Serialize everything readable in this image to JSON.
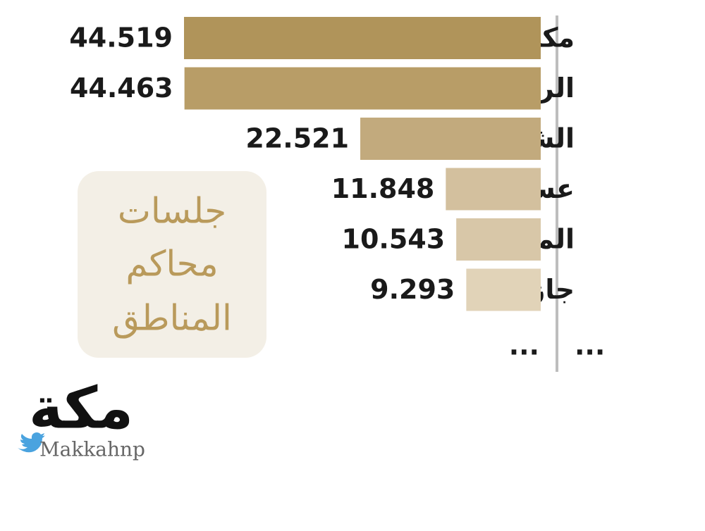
{
  "chart_data": {
    "type": "bar",
    "categories": [
      "مكة",
      "الرياض",
      "الشرقية",
      "عسير",
      "المدينة",
      "جازان"
    ],
    "values": [
      44.519,
      44.463,
      22.521,
      11.848,
      10.543,
      9.293
    ],
    "colors": [
      "#b0945a",
      "#b89d67",
      "#c2aa7d",
      "#d3c09e",
      "#d8c7a8",
      "#e1d3b8"
    ],
    "continuation": {
      "category": "...",
      "value": "..."
    },
    "annotation": [
      "جلسات",
      "محاكم",
      "المناطق"
    ]
  },
  "logo": {
    "name": "مكة",
    "handle": "Makkahnp"
  }
}
